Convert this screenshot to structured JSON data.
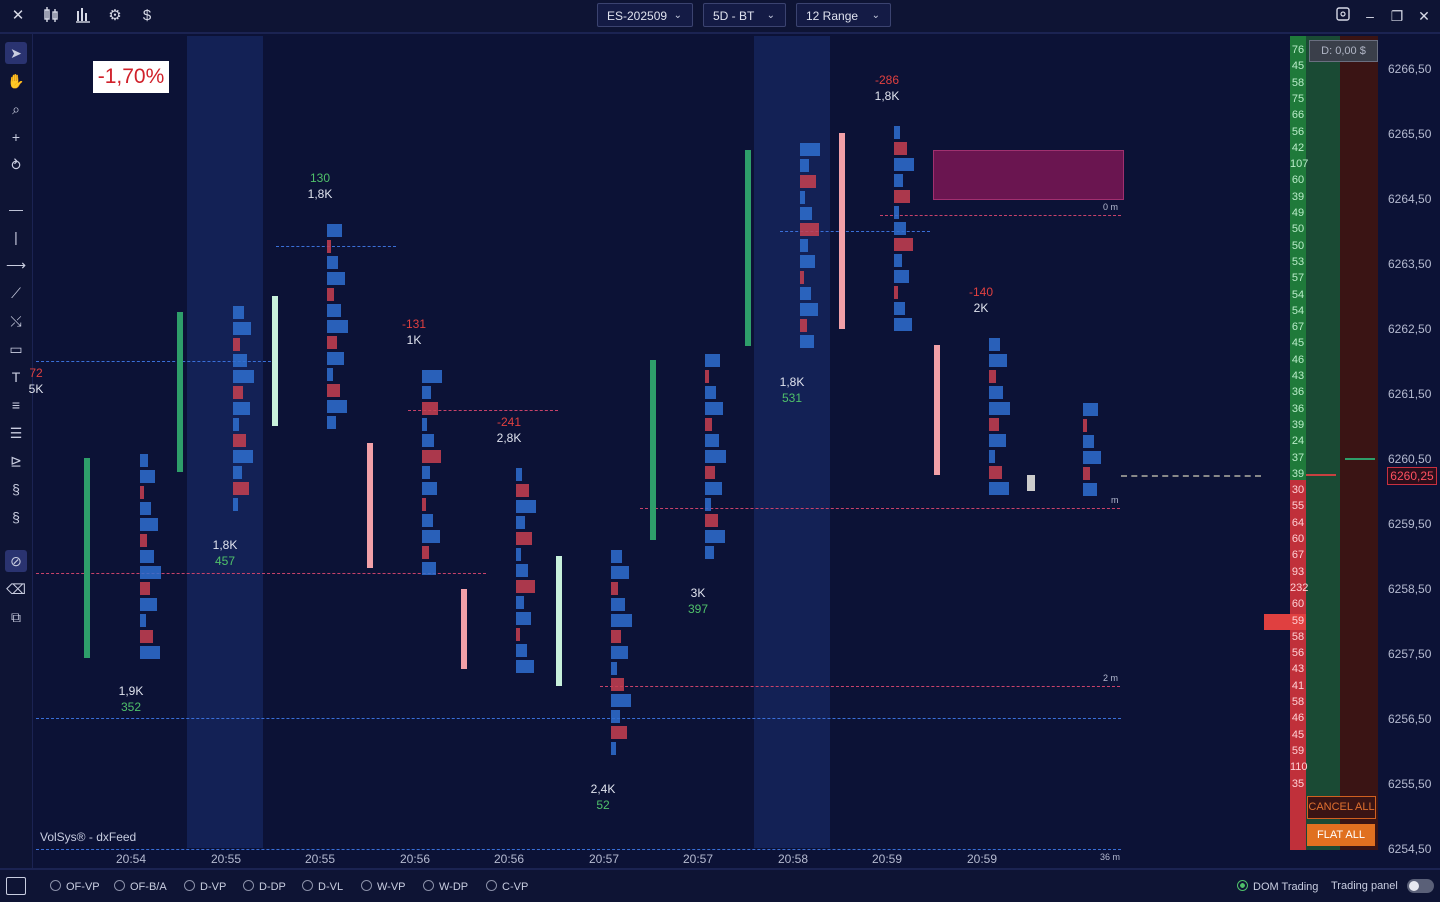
{
  "toolbar": {
    "symbol": "ES-202509",
    "timeframe": "5D - BT",
    "range": "12 Range",
    "currency_icon": "$"
  },
  "chart": {
    "percent_change": "-1,70%",
    "source": "VolSys® - dxFeed",
    "times": [
      "20:54",
      "20:55",
      "20:55",
      "20:56",
      "20:56",
      "20:57",
      "20:57",
      "20:58",
      "20:59",
      "20:59"
    ],
    "prices": [
      "6266,50",
      "6265,50",
      "6264,50",
      "6263,50",
      "6262,50",
      "6261,50",
      "6260,50",
      "6259,50",
      "6258,50",
      "6257,50",
      "6256,50",
      "6255,50",
      "6254,50"
    ],
    "current_price": "6260,25",
    "markers": [
      "0 m",
      "2 m",
      "36 m",
      "m"
    ],
    "candles": [
      {
        "top": "",
        "delta": "72",
        "vol": "5K",
        "bvol": "1,9K",
        "bdelta": "352"
      },
      {
        "top": "",
        "delta": "",
        "vol": "",
        "bvol": "1,8K",
        "bdelta": "457"
      },
      {
        "top": "130",
        "vol": "1,8K"
      },
      {
        "delta": "-131",
        "vol": "1K"
      },
      {
        "delta": "-241",
        "vol": "2,8K"
      },
      {
        "bvol": "2,4K",
        "bdelta": "52"
      },
      {
        "bvol": "3K",
        "bdelta": "397"
      },
      {
        "bvol": "1,8K",
        "bdelta": "531"
      },
      {
        "delta": "-286",
        "vol": "1,8K"
      },
      {
        "delta": "-140",
        "vol": "2K"
      }
    ]
  },
  "dom": {
    "balance": "D: 0,00 $",
    "cancel_all": "CANCEL ALL",
    "flat_all": "FLAT ALL",
    "bid_col": [
      "76",
      "45",
      "58",
      "75",
      "66",
      "56",
      "42",
      "107",
      "60",
      "39",
      "49",
      "50",
      "50",
      "53",
      "57",
      "54",
      "54",
      "67",
      "45",
      "46",
      "43",
      "36",
      "36",
      "39",
      "24",
      "37",
      "39",
      "30",
      "55",
      "64",
      "60",
      "67",
      "93",
      "232",
      "60",
      "59",
      "58",
      "56",
      "43",
      "41",
      "58",
      "46",
      "45",
      "59",
      "110",
      "35"
    ]
  },
  "bottom": {
    "options": [
      "OF-VP",
      "OF-B/A",
      "D-VP",
      "D-DP",
      "D-VL",
      "W-VP",
      "W-DP",
      "C-VP"
    ],
    "dom_trading": "DOM Trading",
    "trading_panel": "Trading panel"
  }
}
